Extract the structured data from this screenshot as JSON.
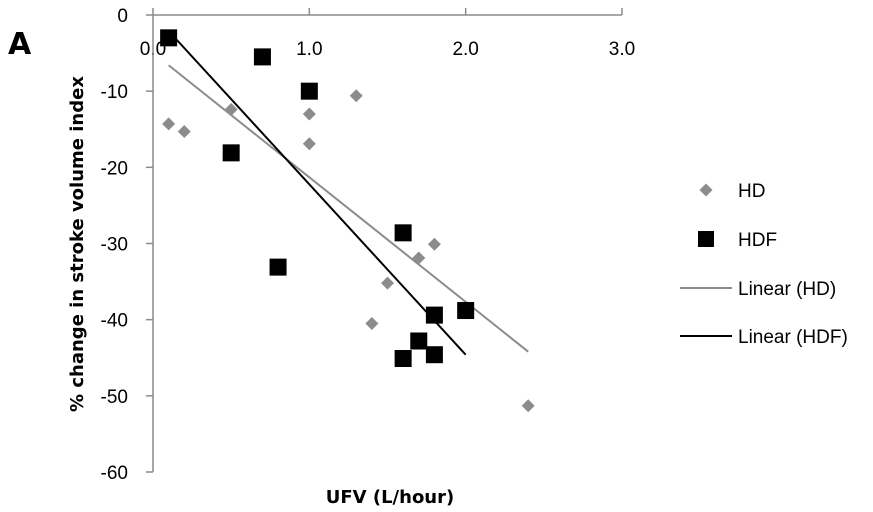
{
  "panel_label": "A",
  "chart_data": {
    "type": "scatter",
    "xlabel": "UFV (L/hour)",
    "ylabel": "% change in stroke volume index",
    "xlim": [
      0,
      3.0
    ],
    "ylim": [
      -60,
      0
    ],
    "x_ticks": [
      "0.0",
      "1.0",
      "2.0",
      "3.0"
    ],
    "y_ticks": [
      "0",
      "-10",
      "-20",
      "-30",
      "-40",
      "-50",
      "-60"
    ],
    "x_tick_values": [
      0,
      1,
      2,
      3
    ],
    "y_tick_values": [
      0,
      -10,
      -20,
      -30,
      -40,
      -50,
      -60
    ],
    "legend_position": "right",
    "series": [
      {
        "name": "HD",
        "marker": "diamond",
        "color": "#8c8c8c",
        "points": [
          [
            0.1,
            -14.3
          ],
          [
            0.2,
            -15.3
          ],
          [
            0.5,
            -12.4
          ],
          [
            1.0,
            -13.0
          ],
          [
            1.0,
            -16.9
          ],
          [
            1.3,
            -10.6
          ],
          [
            1.4,
            -40.5
          ],
          [
            1.5,
            -35.2
          ],
          [
            1.7,
            -31.9
          ],
          [
            1.8,
            -30.1
          ],
          [
            2.4,
            -51.3
          ]
        ]
      },
      {
        "name": "HDF",
        "marker": "square",
        "color": "#000000",
        "points": [
          [
            0.1,
            -3.0
          ],
          [
            0.5,
            -18.1
          ],
          [
            0.7,
            -5.5
          ],
          [
            0.8,
            -33.1
          ],
          [
            1.0,
            -10.0
          ],
          [
            1.6,
            -28.6
          ],
          [
            1.6,
            -45.1
          ],
          [
            1.7,
            -42.8
          ],
          [
            1.8,
            -39.4
          ],
          [
            1.8,
            -44.6
          ],
          [
            2.0,
            -38.8
          ]
        ]
      }
    ],
    "trendlines": [
      {
        "name": "Linear (HD)",
        "color": "#8c8c8c",
        "x": [
          0.1,
          2.4
        ],
        "y": [
          -6.6,
          -44.2
        ]
      },
      {
        "name": "Linear (HDF)",
        "color": "#000000",
        "x": [
          0.1,
          2.0
        ],
        "y": [
          -2.1,
          -44.6
        ]
      }
    ]
  }
}
